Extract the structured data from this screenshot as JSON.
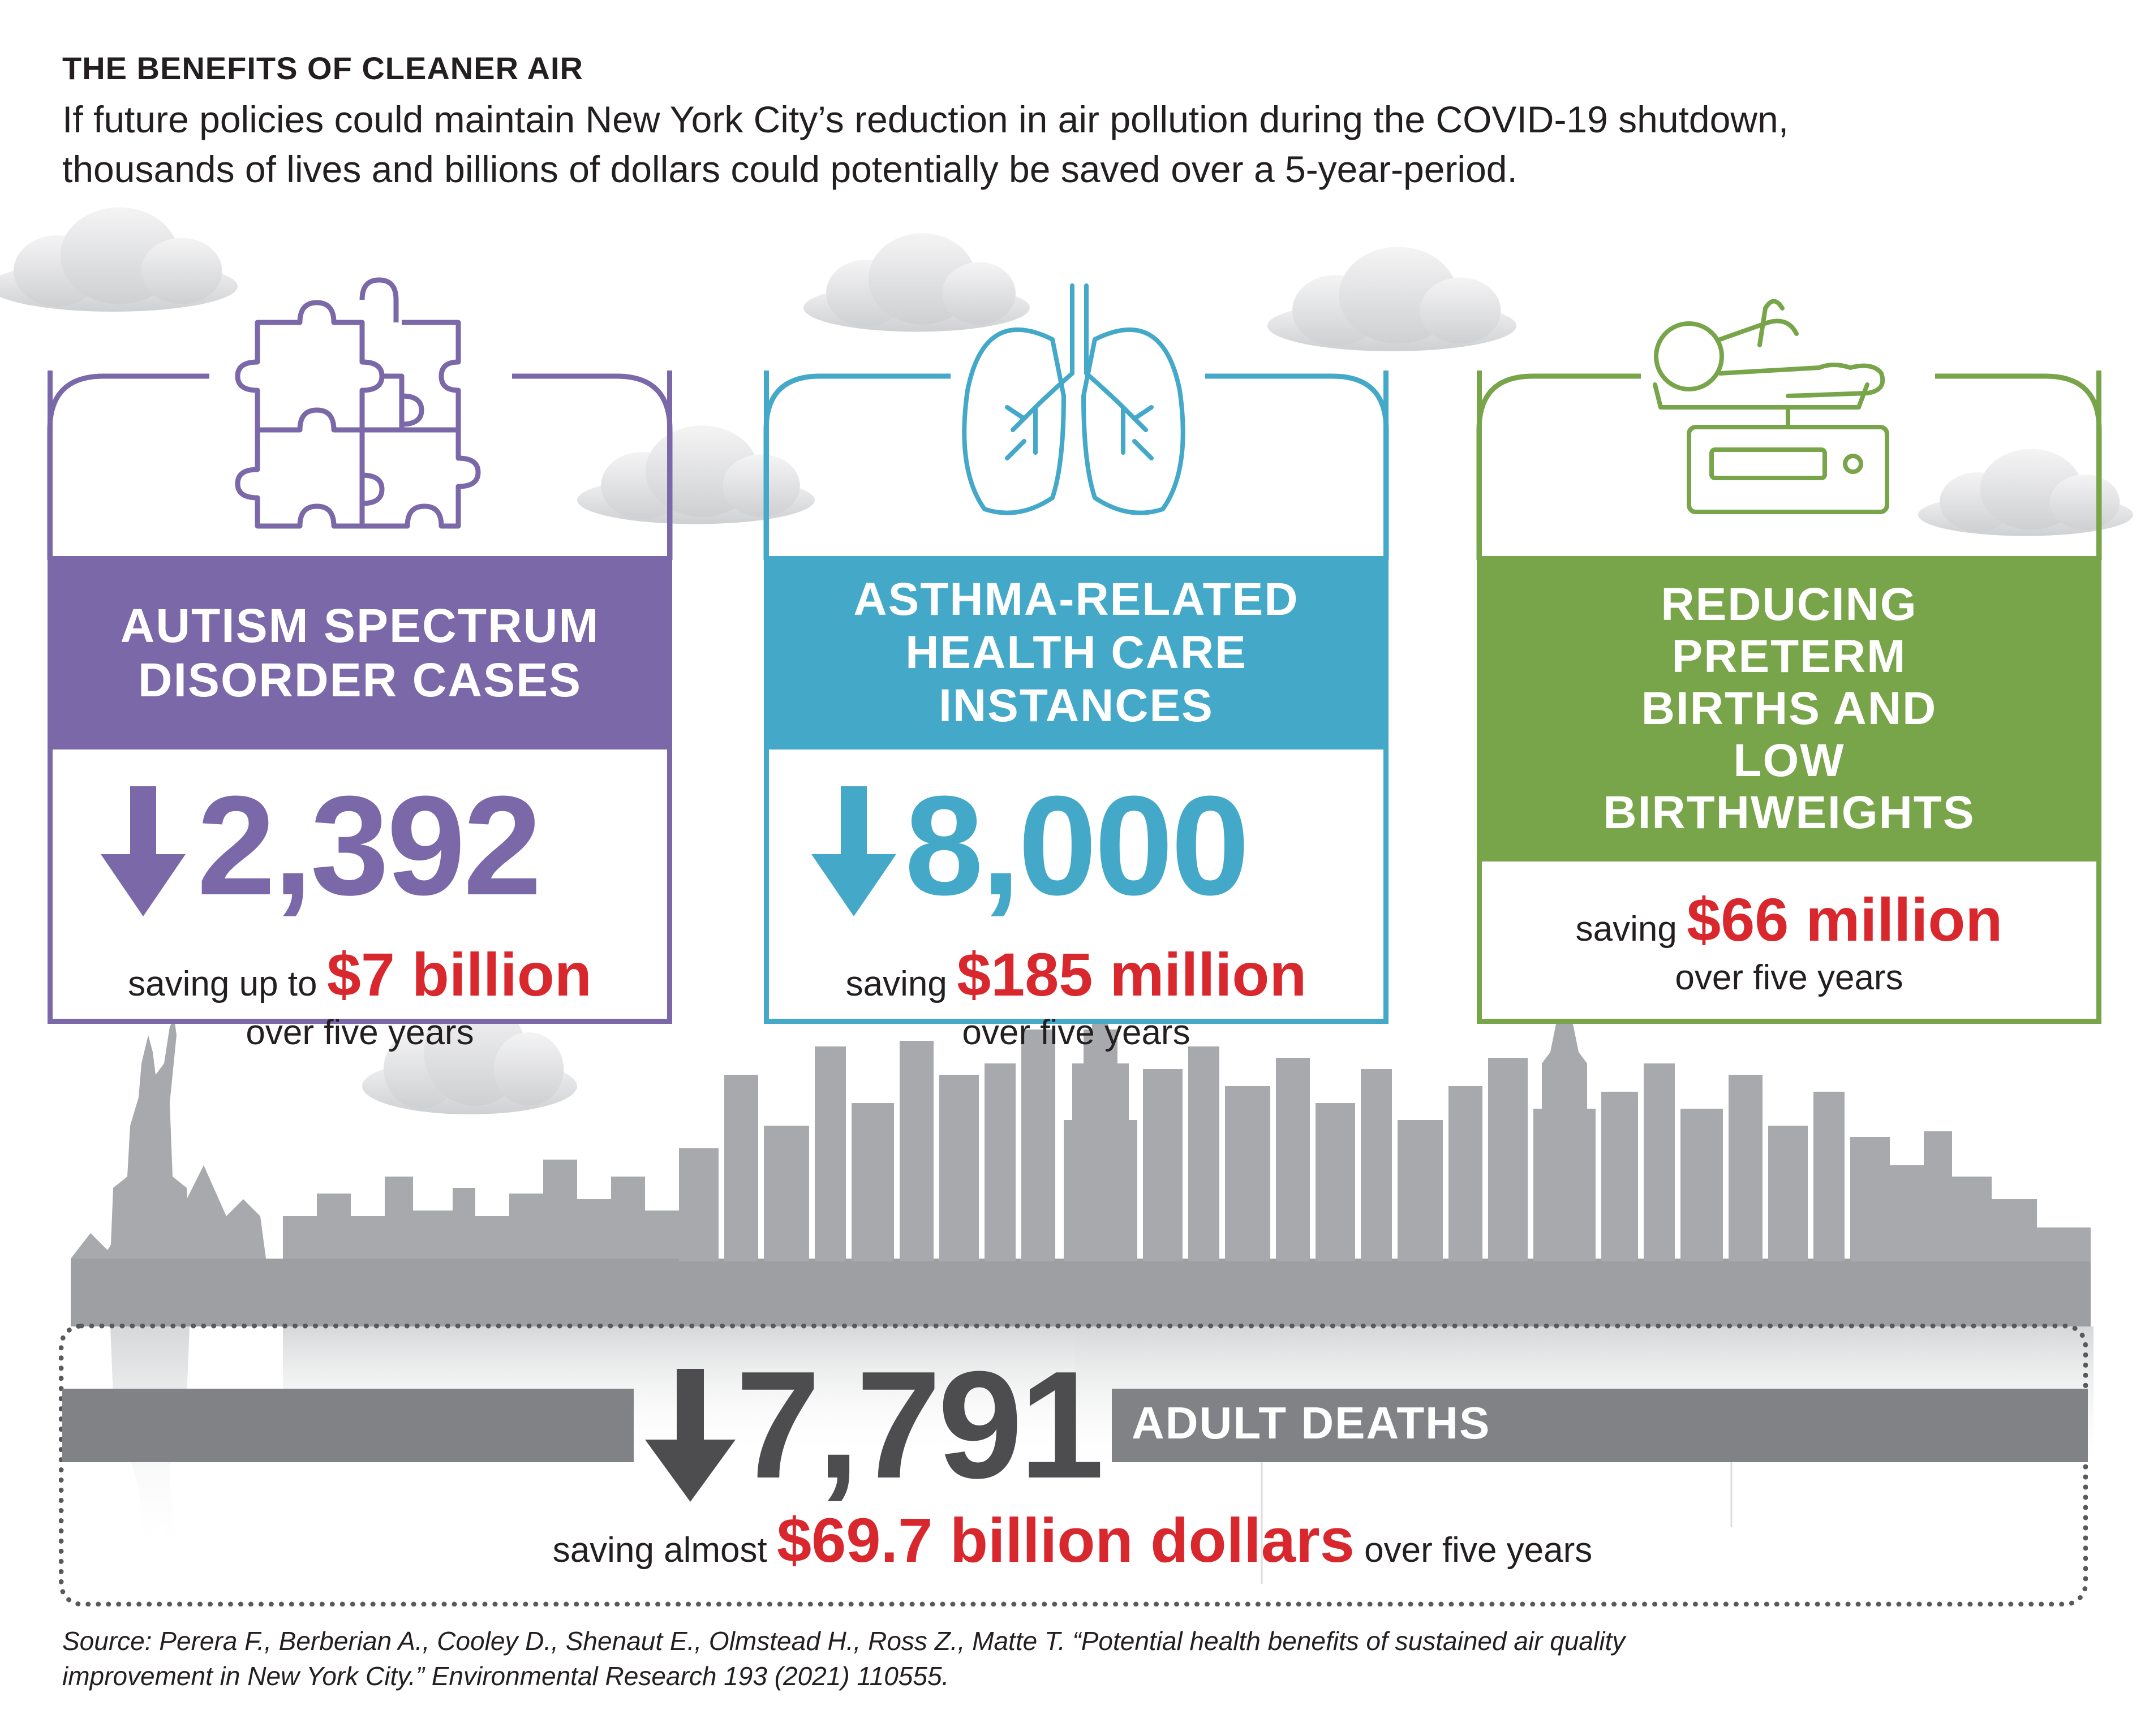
{
  "header": {
    "title": "THE BENEFITS OF CLEANER AIR",
    "subtitle_line1": "If future policies could maintain New York City’s reduction in air pollution during the COVID-19 shutdown,",
    "subtitle_line2": "thousands of lives and billions of dollars could potentially be saved over a 5-year-period."
  },
  "cards": [
    {
      "icon": "puzzle-icon",
      "color": "#7b68a8",
      "title_lines": [
        "AUTISM SPECTRUM",
        "DISORDER CASES"
      ],
      "value": "2,392",
      "saving_prefix": "saving up to",
      "saving_amount": "$7 billion",
      "saving_suffix": "over five years"
    },
    {
      "icon": "lungs-icon",
      "color": "#44a8c8",
      "title_lines": [
        "ASTHMA-RELATED",
        "HEALTH CARE",
        "INSTANCES"
      ],
      "value": "8,000",
      "saving_prefix": "saving",
      "saving_amount": "$185 million",
      "saving_suffix": "over five years"
    },
    {
      "icon": "baby-scale-icon",
      "color": "#78a44a",
      "title_lines": [
        "REDUCING",
        "PRETERM",
        "BIRTHS AND",
        "LOW",
        "BIRTHWEIGHTS"
      ],
      "saving_prefix": "saving",
      "saving_amount": "$66 million",
      "saving_suffix": "over five years"
    }
  ],
  "deaths": {
    "value": "7,791",
    "label": "ADULT DEATHS",
    "saving_prefix": "saving almost",
    "saving_amount": "$69.7 billion dollars",
    "saving_suffix": "over five years"
  },
  "source": {
    "line1": "Source: Perera F., Berberian A., Cooley D., Shenaut E., Olmstead H., Ross Z., Matte T. “Potential health benefits of sustained air quality",
    "line2": "improvement in New York City.” Environmental Research 193 (2021) 110555."
  },
  "colors": {
    "accent_red": "#d9272e",
    "skyline_gray": "#a7a9ac",
    "dark_gray": "#4d4d4f"
  }
}
